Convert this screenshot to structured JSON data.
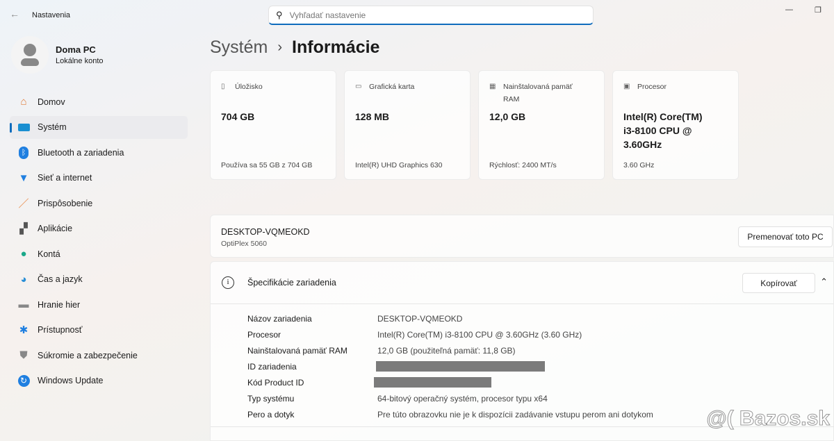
{
  "app": {
    "title": "Nastavenia",
    "search_placeholder": "Vyhľadať nastavenie"
  },
  "profile": {
    "name": "Doma PC",
    "account": "Lokálne konto"
  },
  "sidebar": {
    "items": [
      {
        "label": "Domov",
        "icon": "home-icon"
      },
      {
        "label": "Systém",
        "icon": "system-icon",
        "active": true
      },
      {
        "label": "Bluetooth a zariadenia",
        "icon": "bluetooth-icon"
      },
      {
        "label": "Sieť a internet",
        "icon": "wifi-icon"
      },
      {
        "label": "Prispôsobenie",
        "icon": "brush-icon"
      },
      {
        "label": "Aplikácie",
        "icon": "apps-icon"
      },
      {
        "label": "Kontá",
        "icon": "account-icon"
      },
      {
        "label": "Čas a jazyk",
        "icon": "clock-globe-icon"
      },
      {
        "label": "Hranie hier",
        "icon": "gamepad-icon"
      },
      {
        "label": "Prístupnosť",
        "icon": "accessibility-icon"
      },
      {
        "label": "Súkromie a zabezpečenie",
        "icon": "shield-icon"
      },
      {
        "label": "Windows Update",
        "icon": "update-icon"
      }
    ]
  },
  "breadcrumb": {
    "parent": "Systém",
    "current": "Informácie"
  },
  "cards": [
    {
      "label": "Úložisko",
      "value": "704 GB",
      "sub": "Používa sa 55 GB z 704 GB",
      "icon": "storage-icon"
    },
    {
      "label": "Grafická karta",
      "value": "128 MB",
      "sub": "Intel(R) UHD Graphics 630",
      "icon": "gpu-icon"
    },
    {
      "label": "Nainštalovaná pamäť RAM",
      "value": "12,0 GB",
      "sub": "Rýchlosť: 2400 MT/s",
      "icon": "ram-icon"
    },
    {
      "label": "Procesor",
      "value": "Intel(R) Core(TM) i3-8100 CPU @ 3.60GHz",
      "sub": "3.60 GHz",
      "icon": "cpu-icon"
    }
  ],
  "pc": {
    "name": "DESKTOP-VQMEOKD",
    "model": "OptiPlex 5060",
    "rename_label": "Premenovať toto PC"
  },
  "specs": {
    "title": "Špecifikácie zariadenia",
    "copy_label": "Kopírovať",
    "rows": [
      {
        "key": "Názov zariadenia",
        "value": "DESKTOP-VQMEOKD"
      },
      {
        "key": "Procesor",
        "value": "Intel(R) Core(TM) i3-8100 CPU @ 3.60GHz (3.60 GHz)"
      },
      {
        "key": "Nainštalovaná pamäť RAM",
        "value": "12,0 GB (použiteľná pamäť: 11,8 GB)"
      },
      {
        "key": "ID zariadenia",
        "value": null
      },
      {
        "key": "Kód Product ID",
        "value": null
      },
      {
        "key": "Typ systému",
        "value": "64-bitový operačný systém, procesor typu x64"
      },
      {
        "key": "Pero a dotyk",
        "value": "Pre túto obrazovku nie je k dispozícii zadávanie vstupu perom ani dotykom"
      }
    ]
  },
  "watermark": "@( Bazos.sk",
  "colors": {
    "accent": "#0f6cbd"
  }
}
